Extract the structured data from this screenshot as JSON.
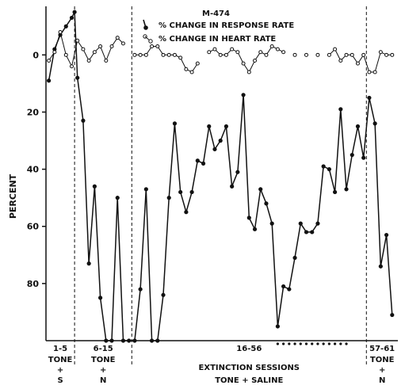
{
  "chart_data": {
    "type": "line",
    "title": "M-474",
    "ylabel": "PERCENT",
    "yticks": [
      "0",
      "20",
      "40",
      "60",
      "80"
    ],
    "ylim": [
      -17,
      100
    ],
    "y_inverted": true,
    "xlim": [
      0.5,
      62
    ],
    "phase_bounds": [
      5.5,
      15.5,
      56.5
    ],
    "phases": [
      {
        "range": "1-5",
        "line1": "TONE",
        "line2": "+",
        "line3": "S"
      },
      {
        "range": "6-15",
        "line1": "TONE",
        "line2": "+",
        "line3": "N"
      },
      {
        "range": "16-56",
        "line1": "EXTINCTION SESSIONS",
        "line2": "TONE + SALINE",
        "line3": ""
      },
      {
        "range": "57-61",
        "line1": "TONE",
        "line2": "+",
        "line3": "N"
      }
    ],
    "series": [
      {
        "name": "% CHANGE IN RESPONSE RATE",
        "points": [
          [
            1,
            9
          ],
          [
            2,
            -2
          ],
          [
            3,
            -7
          ],
          [
            4,
            -10
          ],
          [
            5,
            -13
          ],
          [
            5.5,
            -15
          ],
          [
            6,
            8
          ],
          [
            7,
            23
          ],
          [
            8,
            73
          ],
          [
            9,
            46
          ],
          [
            10,
            85
          ],
          [
            11,
            100
          ],
          [
            12,
            100
          ],
          [
            13,
            50
          ],
          [
            14,
            100
          ],
          [
            15,
            100
          ],
          [
            16,
            100
          ],
          [
            17,
            82
          ],
          [
            18,
            47
          ],
          [
            19,
            100
          ],
          [
            20,
            100
          ],
          [
            21,
            84
          ],
          [
            22,
            50
          ],
          [
            23,
            24
          ],
          [
            24,
            48
          ],
          [
            25,
            55
          ],
          [
            26,
            48
          ],
          [
            27,
            37
          ],
          [
            28,
            38
          ],
          [
            29,
            25
          ],
          [
            30,
            33
          ],
          [
            31,
            30
          ],
          [
            32,
            25
          ],
          [
            33,
            46
          ],
          [
            34,
            41
          ],
          [
            35,
            14
          ],
          [
            36,
            57
          ],
          [
            37,
            61
          ],
          [
            38,
            47
          ],
          [
            39,
            52
          ],
          [
            40,
            59
          ],
          [
            41,
            95
          ],
          [
            42,
            81
          ],
          [
            43,
            82
          ],
          [
            44,
            71
          ],
          [
            45,
            59
          ],
          [
            46,
            62
          ],
          [
            47,
            62
          ],
          [
            48,
            59
          ],
          [
            49,
            39
          ],
          [
            50,
            40
          ],
          [
            51,
            48
          ],
          [
            52,
            19
          ],
          [
            53,
            47
          ],
          [
            54,
            35
          ],
          [
            55,
            25
          ],
          [
            56,
            36
          ],
          [
            57,
            15
          ],
          [
            58,
            24
          ],
          [
            59,
            74
          ],
          [
            60,
            63
          ],
          [
            61,
            91
          ]
        ]
      },
      {
        "name": "% CHANGE IN HEART RATE",
        "points": [
          [
            1,
            2
          ],
          [
            2,
            -1
          ],
          [
            3,
            -8
          ],
          [
            4,
            0
          ],
          [
            5,
            4
          ],
          [
            6,
            -5
          ],
          [
            7,
            -2
          ],
          [
            8,
            2
          ],
          [
            9,
            -1
          ],
          [
            10,
            -3
          ],
          [
            11,
            2
          ],
          [
            12,
            -3
          ],
          [
            13,
            -6
          ],
          [
            14,
            -4
          ],
          [
            16,
            0
          ],
          [
            17,
            0
          ],
          [
            18,
            0
          ],
          [
            19,
            -3
          ],
          [
            20,
            -3
          ],
          [
            21,
            0
          ],
          [
            22,
            0
          ],
          [
            23,
            0
          ],
          [
            24,
            1
          ],
          [
            25,
            5
          ],
          [
            26,
            6
          ],
          [
            27,
            3
          ],
          [
            29,
            -1
          ],
          [
            30,
            -2
          ],
          [
            31,
            0
          ],
          [
            32,
            0
          ],
          [
            33,
            -2
          ],
          [
            34,
            -1
          ],
          [
            35,
            3
          ],
          [
            36,
            6
          ],
          [
            37,
            2
          ],
          [
            38,
            -1
          ],
          [
            39,
            0
          ],
          [
            40,
            -3
          ],
          [
            41,
            -2
          ],
          [
            42,
            -1
          ],
          [
            44,
            0
          ],
          [
            46,
            0
          ],
          [
            48,
            0
          ],
          [
            50,
            0
          ],
          [
            51,
            -2
          ],
          [
            52,
            2
          ],
          [
            53,
            0
          ],
          [
            54,
            0
          ],
          [
            55,
            3
          ],
          [
            56,
            0
          ],
          [
            57,
            6
          ],
          [
            58,
            6
          ],
          [
            59,
            -1
          ],
          [
            60,
            0
          ],
          [
            61,
            0
          ]
        ]
      }
    ],
    "extinction_marker_sessions": [
      41,
      42,
      43,
      44,
      45,
      46,
      47,
      48,
      49,
      50,
      51,
      52,
      53
    ]
  }
}
